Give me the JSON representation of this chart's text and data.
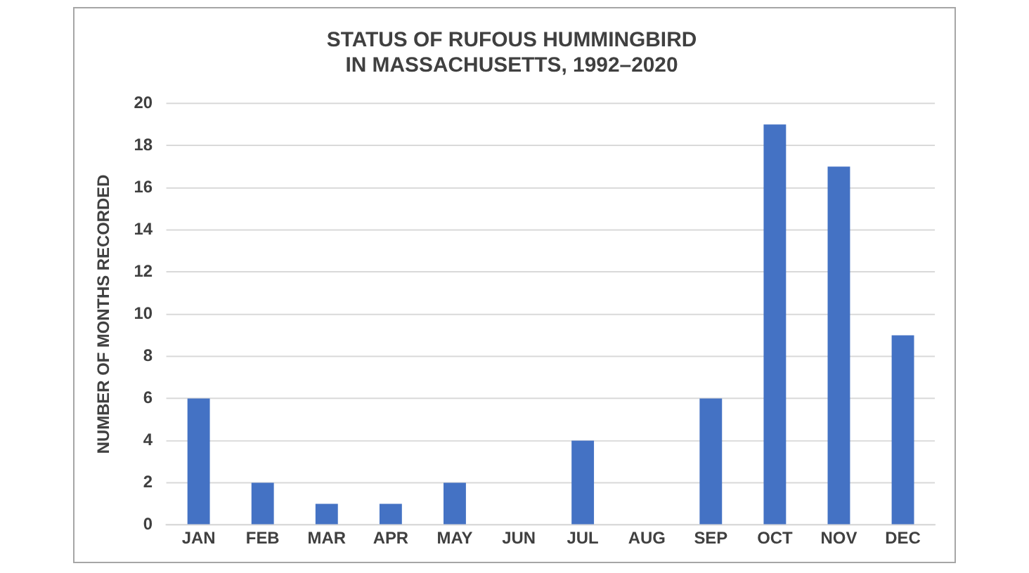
{
  "chart_data": {
    "type": "bar",
    "title": "STATUS OF RUFOUS HUMMINGBIRD\nIN MASSACHUSETTS, 1992–2020",
    "ylabel": "NUMBER OF MONTHS RECORDED",
    "categories": [
      "JAN",
      "FEB",
      "MAR",
      "APR",
      "MAY",
      "JUN",
      "JUL",
      "AUG",
      "SEP",
      "OCT",
      "NOV",
      "DEC"
    ],
    "values": [
      6,
      2,
      1,
      1,
      2,
      0,
      4,
      0,
      6,
      19,
      17,
      9
    ],
    "color": "#4472c4",
    "ylim": [
      0,
      20
    ],
    "yticks": [
      0,
      2,
      4,
      6,
      8,
      10,
      12,
      14,
      16,
      18,
      20
    ],
    "grid": "y",
    "legend": false
  }
}
